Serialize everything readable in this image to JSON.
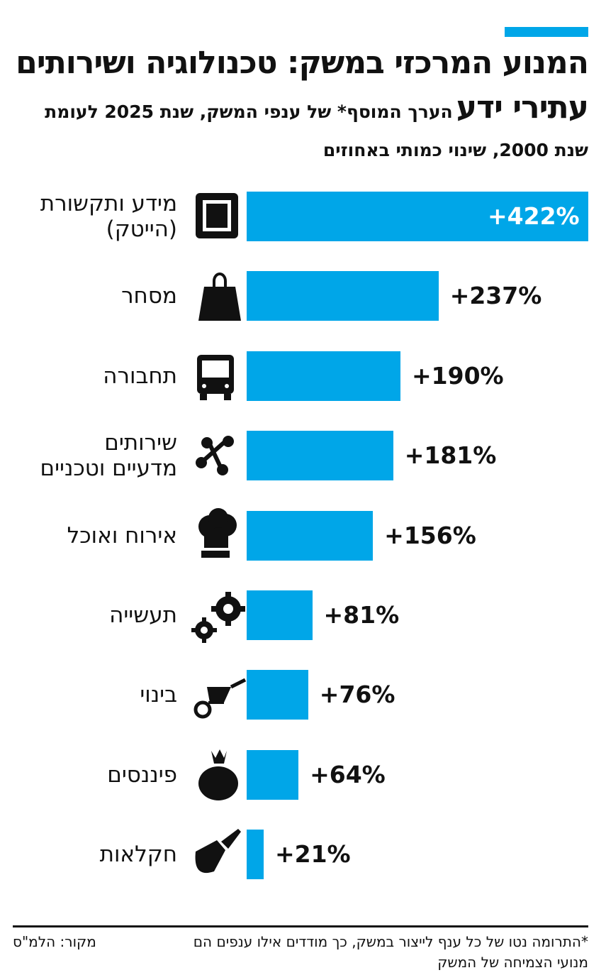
{
  "chart_data": {
    "type": "bar",
    "orientation": "horizontal",
    "title": "המנוע המרכזי במשק: טכנולוגיה ושירותים עתירי ידע",
    "subtitle": "הערך המוסף* של ענפי המשק, שנת 2025 לעומת שנת 2000, שינוי כמותי באחוזים",
    "categories": [
      "מידע ותקשורת\n(הייטק)",
      "מסחר",
      "תחבורה",
      "שירותים\nמדעיים וטכניים",
      "אירוח ואוכל",
      "תעשייה",
      "בינוי",
      "פיננסים",
      "חקלאות"
    ],
    "values": [
      422,
      237,
      190,
      181,
      156,
      81,
      76,
      64,
      21
    ],
    "value_labels": [
      "+422%",
      "+237%",
      "+190%",
      "+181%",
      "+156%",
      "+81%",
      "+76%",
      "+64%",
      "+21%"
    ],
    "color": "#00a6e8",
    "footnote": "*התרומה נטו של כל ענף לייצור במשק, כך מודדים אילו ענפים הם מנועי הצמיחה של המשק",
    "source": "מקור: הלמ\"ס"
  }
}
